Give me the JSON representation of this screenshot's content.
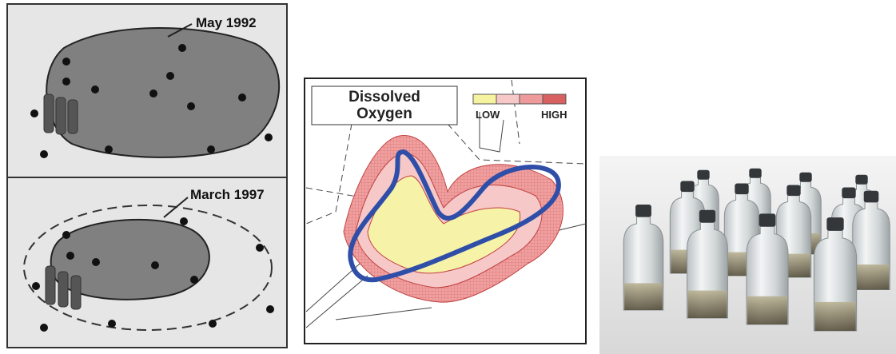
{
  "left_panel": {
    "top": {
      "label": "May 1992"
    },
    "bottom": {
      "label": "March 1997"
    }
  },
  "middle_panel": {
    "title_lines": [
      "Dissolved",
      "Oxygen"
    ],
    "legend": {
      "low": "LOW",
      "high": "HIGH"
    }
  }
}
